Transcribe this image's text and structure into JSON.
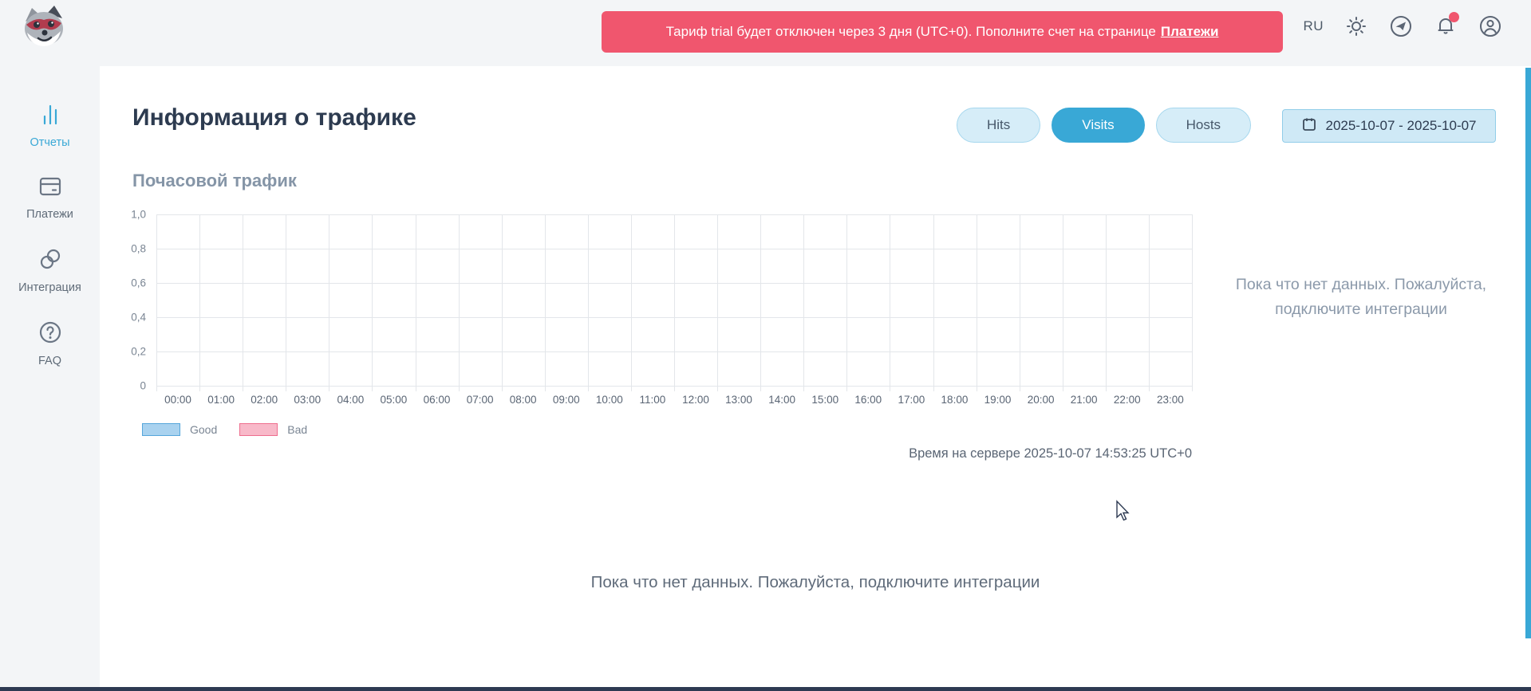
{
  "header": {
    "banner": {
      "text": "Тариф trial будет отключен через 3 дня (UTC+0). Пополните счет на странице",
      "link_label": "Платежи"
    },
    "language": "RU",
    "icons": [
      "theme-sun-icon",
      "telegram-icon",
      "notifications-bell-icon",
      "profile-icon"
    ],
    "notification_dot": true
  },
  "sidebar": {
    "items": [
      {
        "label": "Отчеты",
        "icon": "bar-chart-icon",
        "active": true
      },
      {
        "label": "Платежи",
        "icon": "credit-card-icon",
        "active": false
      },
      {
        "label": "Интеграция",
        "icon": "link-icon",
        "active": false
      },
      {
        "label": "FAQ",
        "icon": "question-circle-icon",
        "active": false
      }
    ]
  },
  "main": {
    "title": "Информация о трафике",
    "metric_tabs": [
      {
        "label": "Hits",
        "active": false
      },
      {
        "label": "Visits",
        "active": true
      },
      {
        "label": "Hosts",
        "active": false
      }
    ],
    "date_range": "2025-10-07 - 2025-10-07",
    "section_title": "Почасовой трафик",
    "server_time": "Время на сервере 2025-10-07 14:53:25 UTC+0",
    "empty_side_message": "Пока что нет данных. Пожалуйста, подключите интеграции",
    "empty_bottom_message": "Пока что нет данных. Пожалуйста, подключите интеграции"
  },
  "chart_data": {
    "type": "bar",
    "title": "Почасовой трафик",
    "categories": [
      "00:00",
      "01:00",
      "02:00",
      "03:00",
      "04:00",
      "05:00",
      "06:00",
      "07:00",
      "08:00",
      "09:00",
      "10:00",
      "11:00",
      "12:00",
      "13:00",
      "14:00",
      "15:00",
      "16:00",
      "17:00",
      "18:00",
      "19:00",
      "20:00",
      "21:00",
      "22:00",
      "23:00"
    ],
    "series": [
      {
        "name": "Good",
        "values": []
      },
      {
        "name": "Bad",
        "values": []
      }
    ],
    "ylim": [
      0,
      1
    ],
    "y_tick_labels": [
      "1,0",
      "0,8",
      "0,6",
      "0,4",
      "0,2",
      "0"
    ],
    "grid": true,
    "legend_position": "bottom-left",
    "legend": [
      {
        "label": "Good",
        "fill": "#a9d2ef",
        "border": "#55a6db"
      },
      {
        "label": "Bad",
        "fill": "#f8b9c9",
        "border": "#ee6e8e"
      }
    ]
  },
  "colors": {
    "accent_blue": "#39a8d6",
    "banner_red": "#f0566e",
    "header_bg": "#f3f5f7",
    "heading_text": "#2d3b50",
    "muted_text": "#8595a7",
    "grid_line": "#e3e6ea",
    "bottom_bar": "#2d3a52"
  }
}
